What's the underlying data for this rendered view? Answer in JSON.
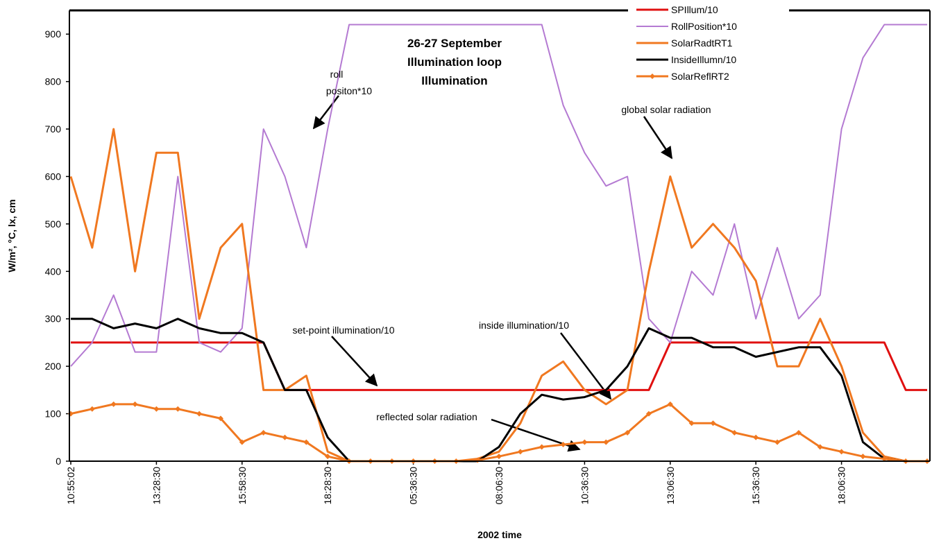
{
  "chart_data": {
    "type": "line",
    "title": [
      "26-27 September",
      "Illumination loop",
      "Illumination"
    ],
    "x_label": "2002 time",
    "y_label": "W/m², °C, lx, cm",
    "categories": [
      "10:55:02",
      null,
      null,
      null,
      "13:28:30",
      null,
      null,
      null,
      "15:58:30",
      null,
      null,
      null,
      "18:28:30",
      null,
      null,
      null,
      "05:36:30",
      null,
      null,
      null,
      "08:06:30",
      null,
      null,
      null,
      "10:36:30",
      null,
      null,
      null,
      "13:06:30",
      null,
      null,
      null,
      "15:36:30",
      null,
      null,
      null,
      "18:06:30",
      null,
      null,
      null,
      null
    ],
    "ylim": [
      0,
      950
    ],
    "yticks": [
      0,
      100,
      200,
      300,
      400,
      500,
      600,
      700,
      800,
      900
    ],
    "legend": "top-right",
    "series": [
      {
        "name": "SPIllum/10",
        "color": "#e01010",
        "values": [
          250,
          250,
          250,
          250,
          250,
          250,
          250,
          250,
          250,
          250,
          150,
          150,
          150,
          150,
          150,
          150,
          150,
          150,
          150,
          150,
          150,
          150,
          150,
          150,
          150,
          150,
          150,
          150,
          250,
          250,
          250,
          250,
          250,
          250,
          250,
          250,
          250,
          250,
          250,
          150,
          150
        ]
      },
      {
        "name": "RollPosition*10",
        "color": "#b47ad2",
        "values": [
          200,
          250,
          350,
          230,
          230,
          600,
          250,
          230,
          280,
          700,
          600,
          450,
          700,
          920,
          920,
          920,
          920,
          920,
          920,
          920,
          920,
          920,
          920,
          750,
          650,
          580,
          600,
          300,
          250,
          400,
          350,
          500,
          300,
          450,
          300,
          350,
          700,
          850,
          920,
          920,
          920
        ]
      },
      {
        "name": "SolarRadtRT1",
        "color": "#f07820",
        "values": [
          600,
          450,
          700,
          400,
          650,
          650,
          300,
          450,
          500,
          150,
          150,
          180,
          20,
          0,
          0,
          0,
          0,
          0,
          0,
          5,
          20,
          80,
          180,
          210,
          150,
          120,
          150,
          400,
          600,
          450,
          500,
          450,
          380,
          200,
          200,
          300,
          200,
          60,
          10,
          0,
          0
        ]
      },
      {
        "name": "InsideIllumn/10",
        "color": "#000000",
        "values": [
          300,
          300,
          280,
          290,
          280,
          300,
          280,
          270,
          270,
          250,
          150,
          150,
          50,
          0,
          0,
          0,
          0,
          0,
          0,
          0,
          30,
          100,
          140,
          130,
          135,
          150,
          200,
          280,
          260,
          260,
          240,
          240,
          220,
          230,
          240,
          240,
          180,
          40,
          5,
          0,
          0
        ]
      },
      {
        "name": "SolarReflRT2",
        "color": "#f07820",
        "marker": "diamond",
        "values": [
          100,
          110,
          120,
          120,
          110,
          110,
          100,
          90,
          40,
          60,
          50,
          40,
          10,
          0,
          0,
          0,
          0,
          0,
          0,
          2,
          10,
          20,
          30,
          35,
          40,
          40,
          60,
          100,
          120,
          80,
          80,
          60,
          50,
          40,
          60,
          30,
          20,
          10,
          5,
          0,
          0
        ]
      }
    ],
    "annotations": [
      [
        "roll",
        "positon*10"
      ],
      [
        "global solar radiation"
      ],
      [
        "set-point illumination/10"
      ],
      [
        "inside illumination/10"
      ],
      [
        "reflected solar radiation"
      ]
    ]
  }
}
